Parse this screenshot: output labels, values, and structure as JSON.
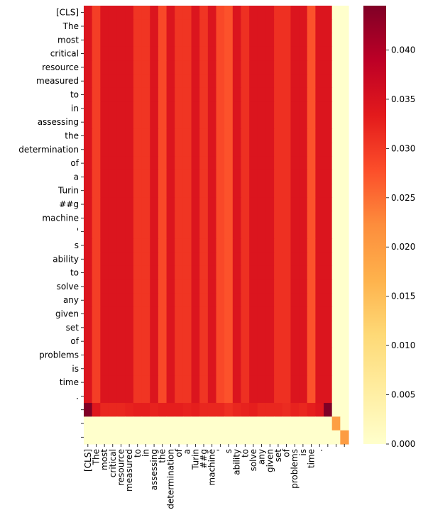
{
  "chart_data": {
    "type": "heatmap",
    "title": "",
    "xlabel": "",
    "ylabel": "",
    "row_labels": [
      "[CLS]",
      "The",
      "most",
      "critical",
      "resource",
      "measured",
      "to",
      "in",
      "assessing",
      "the",
      "determination",
      "of",
      "a",
      "Turin",
      "##g",
      "machine",
      "'",
      "s",
      "ability",
      "to",
      "solve",
      "any",
      "given",
      "set",
      "of",
      "problems",
      "is",
      "time",
      ".",
      "",
      "",
      ""
    ],
    "col_labels": [
      "[CLS]",
      "The",
      "most",
      "critical",
      "resource",
      "measured",
      "to",
      "in",
      "assessing",
      "the",
      "determination",
      "of",
      "a",
      "Turin",
      "##g",
      "machine",
      "'",
      "s",
      "ability",
      "to",
      "solve",
      "any",
      "given",
      "set",
      "of",
      "problems",
      "is",
      "time",
      ".",
      "",
      "",
      ""
    ],
    "column_profile": [
      0.0345,
      0.0295,
      0.0345,
      0.0345,
      0.0345,
      0.0345,
      0.0305,
      0.0305,
      0.0345,
      0.0285,
      0.0345,
      0.0305,
      0.0305,
      0.0345,
      0.0305,
      0.0345,
      0.0285,
      0.0275,
      0.0345,
      0.031,
      0.0345,
      0.0345,
      0.0345,
      0.031,
      0.031,
      0.0345,
      0.0345,
      0.0275,
      0.0345,
      0.0345,
      0.0,
      0.0
    ],
    "special_rows": {
      "29": [
        0.0445,
        0.034,
        0.032,
        0.032,
        0.032,
        0.0325,
        0.033,
        0.033,
        0.0325,
        0.033,
        0.033,
        0.033,
        0.0325,
        0.033,
        0.032,
        0.032,
        0.032,
        0.031,
        0.032,
        0.0325,
        0.033,
        0.032,
        0.032,
        0.032,
        0.0315,
        0.0325,
        0.032,
        0.033,
        0.034,
        0.0445,
        0.0,
        0.0
      ],
      "30": [
        0.0,
        0.0,
        0.0,
        0.0,
        0.0,
        0.0,
        0.0,
        0.0,
        0.0,
        0.0,
        0.0,
        0.0,
        0.0,
        0.0,
        0.0,
        0.0,
        0.0,
        0.0,
        0.0,
        0.0,
        0.0,
        0.0,
        0.0,
        0.0,
        0.0,
        0.0,
        0.0,
        0.0,
        0.0,
        0.0,
        0.0195,
        0.0
      ],
      "31": [
        0.0,
        0.0,
        0.0,
        0.0,
        0.0,
        0.0,
        0.0,
        0.0,
        0.0,
        0.0,
        0.0,
        0.0,
        0.0,
        0.0,
        0.0,
        0.0,
        0.0,
        0.0,
        0.0,
        0.0,
        0.0,
        0.0,
        0.0,
        0.0,
        0.0,
        0.0,
        0.0,
        0.0,
        0.0,
        0.0,
        0.0,
        0.02
      ]
    },
    "colorbar": {
      "range": [
        0.0,
        0.0445
      ],
      "ticks": [
        "0.000",
        "0.005",
        "0.010",
        "0.015",
        "0.020",
        "0.025",
        "0.030",
        "0.035",
        "0.040"
      ],
      "tick_values": [
        0.0,
        0.005,
        0.01,
        0.015,
        0.02,
        0.025,
        0.03,
        0.035,
        0.04
      ],
      "colormap": "YlOrRd",
      "colors": [
        "#ffffcc",
        "#ffeda0",
        "#fed976",
        "#feb24c",
        "#fd8d3c",
        "#fc4e2a",
        "#e31a1c",
        "#bd0026",
        "#800026"
      ]
    },
    "grid": false,
    "legend": "colorbar-right"
  }
}
